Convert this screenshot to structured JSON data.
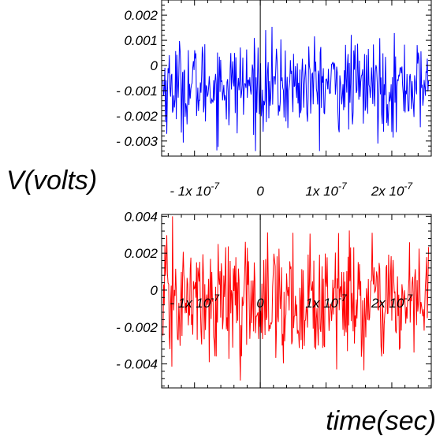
{
  "ylabel": "V(volts)",
  "xlabel": "time(sec)",
  "chart_data": [
    {
      "type": "line",
      "color": "#0000ff",
      "x_range": [
        -1.5e-07,
        2.6e-07
      ],
      "ylim": [
        -0.0036,
        0.0026
      ],
      "x_ticks": [
        {
          "value": -1e-07,
          "mantissa": "- 1x 10",
          "exponent": "-7"
        },
        {
          "value": 0,
          "mantissa": "0",
          "exponent": ""
        },
        {
          "value": 1e-07,
          "mantissa": "1x 10",
          "exponent": "-7"
        },
        {
          "value": 2e-07,
          "mantissa": "2x 10",
          "exponent": "-7"
        }
      ],
      "y_ticks": [
        {
          "value": 0.002,
          "label": "0.002"
        },
        {
          "value": 0.001,
          "label": "0.001"
        },
        {
          "value": 0,
          "label": "0"
        },
        {
          "value": -0.001,
          "label": "- 0.001"
        },
        {
          "value": -0.002,
          "label": "- 0.002"
        },
        {
          "value": -0.003,
          "label": "- 0.003"
        }
      ],
      "noise": {
        "samples": 420,
        "mean": -0.0008,
        "std": 0.0009,
        "min": -0.0034,
        "max": 0.0024
      }
    },
    {
      "type": "line",
      "color": "#ff0000",
      "x_range": [
        -1.5e-07,
        2.6e-07
      ],
      "ylim": [
        -0.0053,
        0.0041
      ],
      "x_ticks": [
        {
          "value": -1e-07,
          "mantissa": "- 1x 10",
          "exponent": "-7"
        },
        {
          "value": 0,
          "mantissa": "0",
          "exponent": ""
        },
        {
          "value": 1e-07,
          "mantissa": "1x 10",
          "exponent": "-7"
        },
        {
          "value": 2e-07,
          "mantissa": "2x 10",
          "exponent": "-7"
        }
      ],
      "y_ticks": [
        {
          "value": 0.004,
          "label": "0.004"
        },
        {
          "value": 0.002,
          "label": "0.002"
        },
        {
          "value": 0,
          "label": "0"
        },
        {
          "value": -0.002,
          "label": "- 0.002"
        },
        {
          "value": -0.004,
          "label": "- 0.004"
        }
      ],
      "noise": {
        "samples": 420,
        "mean": -0.0006,
        "std": 0.0016,
        "min": -0.0049,
        "max": 0.004
      }
    }
  ]
}
